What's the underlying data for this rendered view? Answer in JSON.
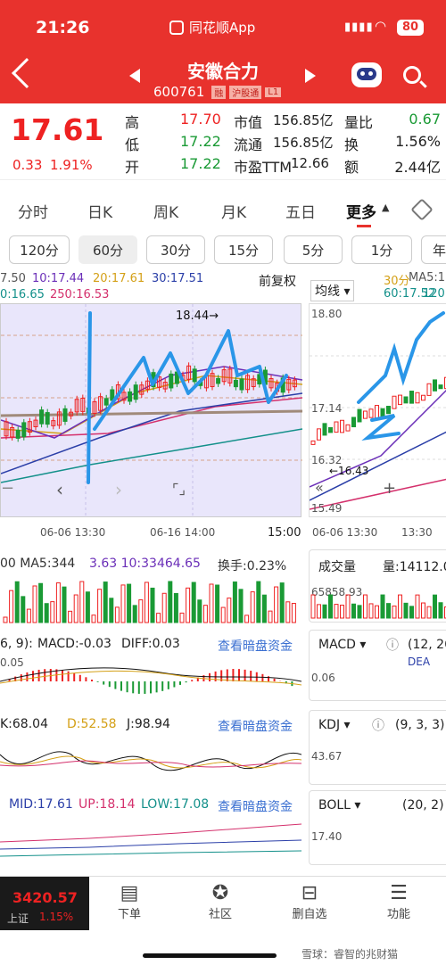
{
  "status_bar": {
    "time": "21:26",
    "app_badge": "同花顺App",
    "battery": "80"
  },
  "header": {
    "stock_name": "安徽合力",
    "stock_code": "600761",
    "tags": [
      "融",
      "沪股通",
      "L1"
    ]
  },
  "quote": {
    "price": "17.61",
    "change": "0.33",
    "change_pct": "1.91%",
    "rows": [
      {
        "k1": "高",
        "v1": "17.70",
        "k2": "市值",
        "v2": "156.85亿",
        "k3": "量比",
        "v3": "0.67"
      },
      {
        "k1": "低",
        "v1": "17.22",
        "k2": "流通",
        "v2": "156.85亿",
        "k3": "换",
        "v3": "1.56%"
      },
      {
        "k1": "开",
        "v1": "17.22",
        "k2": "市盈TTM",
        "v2": "12.66",
        "k3": "额",
        "v3": "2.44亿"
      }
    ]
  },
  "period_tabs": [
    "分时",
    "日K",
    "周K",
    "月K",
    "五日",
    "更多"
  ],
  "minute_chips": [
    "120分",
    "60分",
    "30分",
    "15分",
    "5分",
    "1分",
    "年"
  ],
  "ma_line": {
    "ma5": "7.50",
    "ma10": "10:17.44",
    "ma20": "20:17.61",
    "ma30": "30:17.51",
    "ma60": "0:16.65",
    "ma250": "250:16.53"
  },
  "right_ctrl": {
    "fuquan": "前复权",
    "junxian": "均线",
    "ma30": "30分",
    "ma5": "MA5:17",
    "ma60": "60:17.52",
    "ma120": "120"
  },
  "main_chart": {
    "peak_label": "18.44→",
    "dates": [
      "06-06 13:30",
      "06-16 14:00",
      "15:00"
    ]
  },
  "right_chart": {
    "y": [
      "18.80",
      "17.97",
      "17.14",
      "16.32",
      "15.49"
    ],
    "low_label": "←16.43",
    "dates": [
      "06-06 13:30",
      "13:30"
    ]
  },
  "volume": {
    "label": "00 MA5:344",
    "ma10": "3.63  10:33464.65",
    "turnover": "换手:0.23%",
    "right_title": "成交量",
    "right_val": "量:14112.0",
    "right_y": "65858.93"
  },
  "macd": {
    "params": "6, 9):",
    "macd_val": "MACD:-0.03",
    "diff": "DIFF:0.03",
    "y": "0.05",
    "link": "查看暗盘资金",
    "right_title": "MACD",
    "right_params": "(12, 26",
    "right_dea": "DEA",
    "right_y": "0.06"
  },
  "kdj": {
    "k": "K:68.04",
    "d": "D:52.58",
    "j": "J:98.94",
    "link": "查看暗盘资金",
    "right_title": "KDJ",
    "right_params": "(9, 3, 3)",
    "right_y": "43.67"
  },
  "boll": {
    "mid": "MID:17.61",
    "up": "UP:18.14",
    "low": "LOW:17.08",
    "link": "查看暗盘资金",
    "right_title": "BOLL",
    "right_params": "(20, 2)",
    "right_y": "17.40"
  },
  "bottom": {
    "index_val": "3420.57",
    "index_name": "上证",
    "index_pct": "1.15%",
    "nav": [
      "下单",
      "社区",
      "删自选",
      "功能"
    ],
    "watermark": "雪球：睿智的兆财猫"
  },
  "colors": {
    "brand_red": "#e8322d",
    "chart_bg": "#e9e6fb",
    "rise": "#e22222",
    "fall": "#1a9a35"
  }
}
